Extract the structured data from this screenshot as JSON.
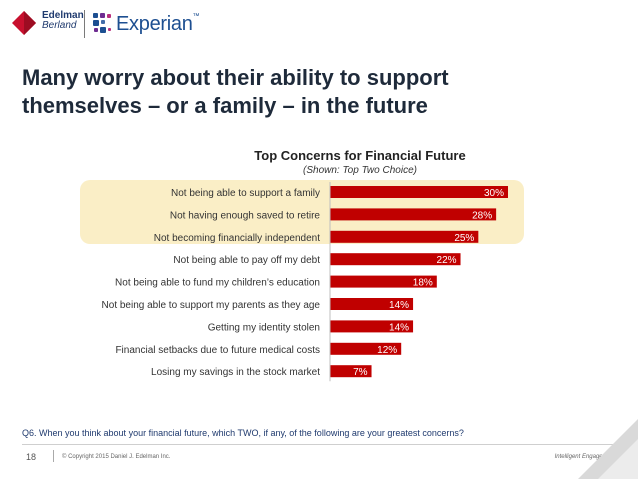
{
  "header": {
    "edelman_line1": "Edelman",
    "edelman_line2": "Berland",
    "experian_name": "Experian",
    "experian_tm": "™"
  },
  "title": "Many worry about their ability to support\nthemselves – or a family – in the future",
  "colors": {
    "bar": "#c00000",
    "highlight": "#faeec6",
    "title": "#1e2a3a",
    "question": "#1f3a6e"
  },
  "chart_data": {
    "type": "bar",
    "orientation": "horizontal",
    "title": "Top Concerns for Financial Future",
    "subtitle": "(Shown: Top Two Choice)",
    "categories": [
      "Not being able to support a family",
      "Not having enough saved to retire",
      "Not becoming financially independent",
      "Not being able to pay off my debt",
      "Not being able to fund my children’s education",
      "Not being able to support my parents as they age",
      "Getting my identity stolen",
      "Financial setbacks due to future medical costs",
      "Losing my savings in the stock market"
    ],
    "values": [
      30,
      28,
      25,
      22,
      18,
      14,
      14,
      12,
      7
    ],
    "value_labels": [
      "30%",
      "28%",
      "25%",
      "22%",
      "18%",
      "14%",
      "14%",
      "12%",
      "7%"
    ],
    "value_unit": "%",
    "highlighted_categories": 3,
    "xlim": [
      0,
      30
    ],
    "grid": false,
    "legend": "none"
  },
  "question": "Q6. When you think about your financial future, which TWO, if any, of the following are your greatest concerns?",
  "footer": {
    "page_number": "18",
    "copyright": "© Copyright 2015 Daniel J. Edelman Inc.",
    "tagline": "Intelligent Engagement"
  }
}
